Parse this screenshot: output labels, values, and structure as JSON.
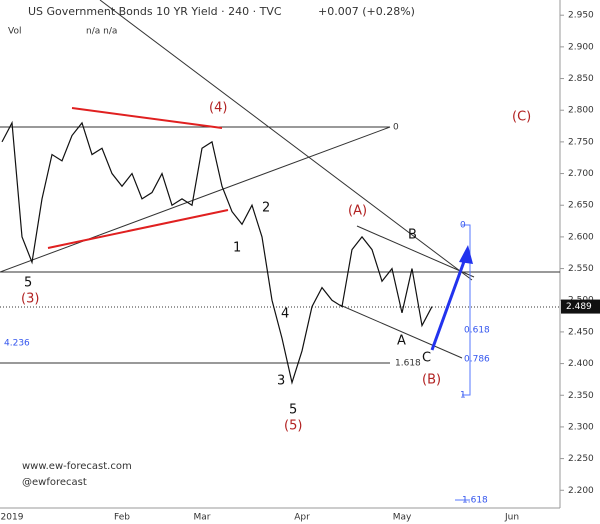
{
  "chart_data": {
    "type": "line",
    "title": "US Government Bonds 10 YR Yield · 240 · TVC",
    "change": "+0.007 (+0.28%)",
    "volume_label": "Vol",
    "volume_values": "n/a  n/a",
    "last_price_label": "2.489",
    "watermark": [
      "www.ew-forecast.com",
      "@ewforecast"
    ],
    "categories": [
      "",
      "2019",
      null,
      null,
      null,
      null,
      null,
      null,
      null,
      null,
      null,
      null,
      "Feb",
      null,
      null,
      null,
      null,
      null,
      null,
      null,
      "Mar",
      null,
      null,
      null,
      null,
      null,
      null,
      null,
      null,
      null,
      "Apr",
      null,
      null,
      null,
      null,
      null,
      null,
      null,
      null,
      null,
      "May",
      null,
      null,
      null,
      null,
      null,
      null,
      null,
      null,
      null,
      null,
      "Jun"
    ],
    "series": [
      {
        "name": "US10Y",
        "color": "#111111",
        "values": [
          2.75,
          2.78,
          2.6,
          2.56,
          2.66,
          2.73,
          2.72,
          2.76,
          2.78,
          2.73,
          2.74,
          2.7,
          2.68,
          2.7,
          2.66,
          2.67,
          2.7,
          2.65,
          2.66,
          2.65,
          2.74,
          2.75,
          2.68,
          2.64,
          2.62,
          2.65,
          2.6,
          2.5,
          2.44,
          2.37,
          2.42,
          2.49,
          2.52,
          2.5,
          2.49,
          2.58,
          2.6,
          2.58,
          2.53,
          2.55,
          2.48,
          2.55,
          2.46,
          2.49,
          null,
          null,
          null,
          null,
          null,
          null,
          null,
          null
        ]
      }
    ],
    "ylim": [
      2.172,
      2.974
    ],
    "yticks": [
      {
        "value": 2.2,
        "label": "2.200"
      },
      {
        "value": 2.25,
        "label": "2.250"
      },
      {
        "value": 2.3,
        "label": "2.300"
      },
      {
        "value": 2.35,
        "label": "2.350"
      },
      {
        "value": 2.4,
        "label": "2.400"
      },
      {
        "value": 2.45,
        "label": "2.450"
      },
      {
        "value": 2.5,
        "label": "2.500"
      },
      {
        "value": 2.55,
        "label": "2.550"
      },
      {
        "value": 2.6,
        "label": "2.600"
      },
      {
        "value": 2.65,
        "label": "2.650"
      },
      {
        "value": 2.7,
        "label": "2.700"
      },
      {
        "value": 2.75,
        "label": "2.750"
      },
      {
        "value": 2.8,
        "label": "2.800"
      },
      {
        "value": 2.85,
        "label": "2.850"
      },
      {
        "value": 2.9,
        "label": "2.900"
      },
      {
        "value": 2.95,
        "label": "2.950"
      }
    ],
    "annotations": [
      "(4)",
      "(C)",
      "(A)",
      "B",
      "2",
      "1",
      "5",
      "(3)",
      "4",
      "A",
      "C",
      "(B)",
      "3",
      "5",
      "(5)",
      "4.236",
      "0",
      "1.618",
      "0",
      "0.618",
      "0.786",
      "1",
      "1.618"
    ]
  }
}
